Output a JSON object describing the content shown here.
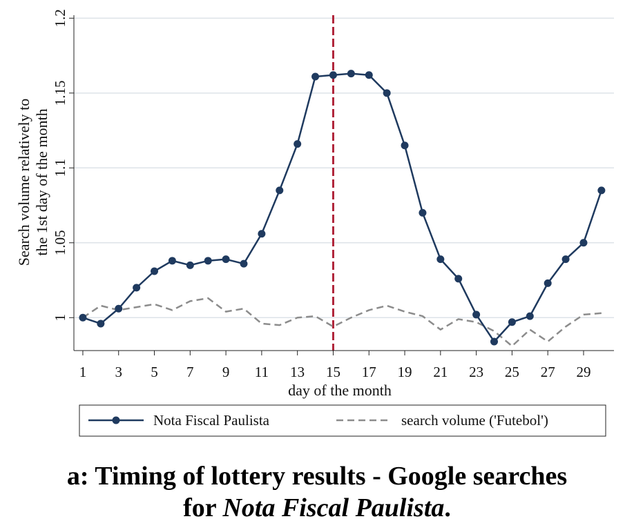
{
  "chart_data": {
    "type": "line",
    "xlabel": "day of the month",
    "ylabel_lines": [
      "Search volume relatively to",
      "the 1st day of the month"
    ],
    "x": [
      1,
      2,
      3,
      4,
      5,
      6,
      7,
      8,
      9,
      10,
      11,
      12,
      13,
      14,
      15,
      16,
      17,
      18,
      19,
      20,
      21,
      22,
      23,
      24,
      25,
      26,
      27,
      28,
      29,
      30
    ],
    "xticks": [
      1,
      3,
      5,
      7,
      9,
      11,
      13,
      15,
      17,
      19,
      21,
      23,
      25,
      27,
      29
    ],
    "yticks": [
      1,
      1.05,
      1.1,
      1.15,
      1.2
    ],
    "ytick_labels": [
      "1",
      "1.05",
      "1.1",
      "1.15",
      "1.2"
    ],
    "xlim": [
      0.5,
      30.7
    ],
    "ylim": [
      0.978,
      1.202
    ],
    "grid": "horizontal",
    "reference_line": {
      "x": 15,
      "color": "#b0243a",
      "style": "dashed"
    },
    "series": [
      {
        "name": "Nota Fiscal Paulista",
        "color": "#1f3a5f",
        "style": "solid-markers",
        "values": [
          1.0,
          0.996,
          1.006,
          1.02,
          1.031,
          1.038,
          1.035,
          1.038,
          1.039,
          1.036,
          1.056,
          1.085,
          1.116,
          1.161,
          1.162,
          1.163,
          1.162,
          1.15,
          1.115,
          1.07,
          1.039,
          1.026,
          1.002,
          0.984,
          0.997,
          1.001,
          1.023,
          1.039,
          1.05,
          1.085
        ]
      },
      {
        "name": "search volume ('Futebol')",
        "color": "#8c8c8c",
        "style": "dashed",
        "values": [
          1.0,
          1.008,
          1.005,
          1.007,
          1.009,
          1.005,
          1.011,
          1.013,
          1.004,
          1.006,
          0.996,
          0.995,
          1.0,
          1.001,
          0.994,
          1.0,
          1.005,
          1.008,
          1.004,
          1.001,
          0.992,
          0.999,
          0.997,
          0.991,
          0.981,
          0.992,
          0.984,
          0.994,
          1.002,
          1.003
        ]
      }
    ],
    "legend_position": "bottom"
  },
  "caption": {
    "line1": "a: Timing of lottery results - Google searches",
    "line2_prefix": "for ",
    "line2_italic": "Nota Fiscal Paulista",
    "line2_suffix": "."
  }
}
